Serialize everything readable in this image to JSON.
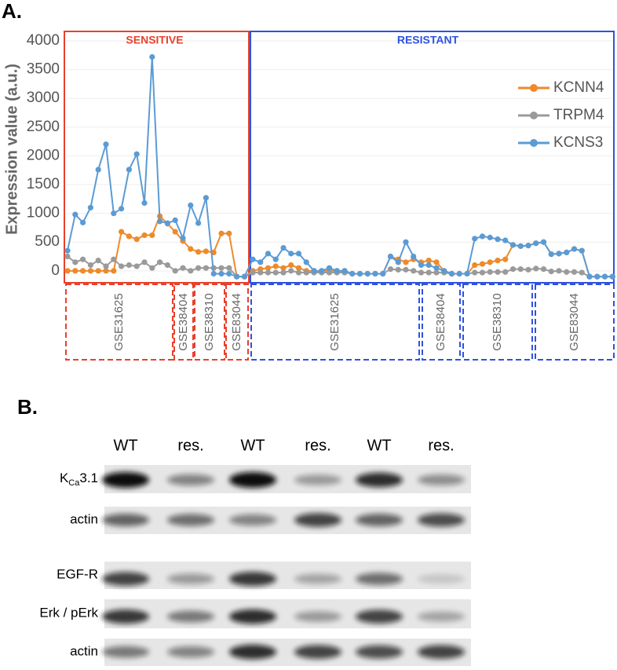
{
  "chart_data": {
    "type": "line",
    "panel_label": "A.",
    "y_label": "Expression value (a.u.)",
    "groups": [
      {
        "label": "SENSITIVE",
        "color": "#e8412c",
        "datasets": [
          "GSE31625",
          "GSE38404",
          "GSE38310",
          "GSE83044"
        ]
      },
      {
        "label": "RESISTANT",
        "color": "#2f52e0",
        "datasets": [
          "GSE31625",
          "GSE38404",
          "GSE38310",
          "GSE83044"
        ]
      }
    ],
    "ylim": [
      -180,
      4000
    ],
    "yticks": [
      0,
      500,
      1000,
      1500,
      2000,
      2500,
      3000,
      3500,
      4000
    ],
    "grid": true,
    "legend": "upper right",
    "series": [
      {
        "name": "KCNN4",
        "color": "#ee8a2a",
        "values": [
          0,
          0,
          0,
          0,
          0,
          0,
          0,
          680,
          600,
          550,
          620,
          620,
          950,
          820,
          680,
          520,
          380,
          330,
          340,
          320,
          650,
          650,
          -100,
          -100,
          0,
          30,
          50,
          80,
          50,
          100,
          50,
          0,
          0,
          0,
          0,
          0,
          0,
          -50,
          -50,
          -50,
          -50,
          -50,
          250,
          200,
          150,
          200,
          150,
          180,
          150,
          0,
          -50,
          -50,
          -50,
          100,
          120,
          150,
          180,
          200,
          450,
          430,
          440,
          480,
          500,
          290,
          300,
          320,
          380,
          350,
          -100,
          -100,
          -100,
          -100
        ]
      },
      {
        "name": "TRPM4",
        "color": "#9a9a9a",
        "values": [
          250,
          150,
          200,
          100,
          180,
          80,
          200,
          80,
          100,
          80,
          150,
          50,
          150,
          100,
          0,
          50,
          0,
          50,
          50,
          50,
          50,
          50,
          -100,
          -100,
          -30,
          -30,
          -30,
          -30,
          -30,
          0,
          -30,
          -30,
          -30,
          -30,
          -30,
          -30,
          -30,
          -50,
          -50,
          -50,
          -50,
          -50,
          30,
          20,
          20,
          0,
          -30,
          -30,
          -30,
          -30,
          -50,
          -50,
          -50,
          -30,
          -30,
          -20,
          -20,
          -20,
          30,
          30,
          20,
          40,
          30,
          -10,
          0,
          -20,
          -20,
          -30,
          -100,
          -100,
          -100,
          -100
        ]
      },
      {
        "name": "KCNS3",
        "color": "#5b9bd5",
        "values": [
          350,
          980,
          840,
          1100,
          1760,
          2200,
          1000,
          1080,
          1760,
          2030,
          1180,
          3720,
          860,
          830,
          880,
          570,
          1140,
          830,
          1270,
          -50,
          -50,
          -50,
          -100,
          -100,
          200,
          150,
          300,
          200,
          400,
          300,
          300,
          150,
          0,
          0,
          50,
          0,
          0,
          -50,
          -50,
          -50,
          -50,
          -50,
          250,
          150,
          500,
          250,
          100,
          100,
          50,
          0,
          -50,
          -50,
          -50,
          560,
          600,
          580,
          550,
          530,
          450,
          430,
          440,
          480,
          500,
          290,
          300,
          320,
          380,
          350,
          -100,
          -100,
          -100,
          -100
        ]
      }
    ]
  },
  "blot": {
    "panel_label": "B.",
    "lanes": [
      "WT",
      "res.",
      "WT",
      "res.",
      "WT",
      "res."
    ],
    "rows": [
      {
        "label": [
          "K",
          "Ca",
          "3.1"
        ]
      },
      {
        "label": [
          "actin"
        ]
      },
      {
        "label": [
          "EGF-R"
        ]
      },
      {
        "label": [
          "Erk / pErk"
        ]
      },
      {
        "label": [
          "actin"
        ]
      }
    ]
  }
}
